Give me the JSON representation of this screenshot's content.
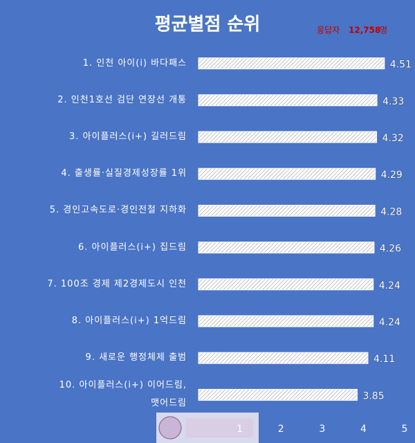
{
  "chart_data": {
    "type": "bar",
    "orientation": "horizontal",
    "title": "평균별점 순위",
    "respondents_prefix": "응답자",
    "respondents": "12,758",
    "respondents_suffix": "명",
    "categories": [
      "1. 인천 아이(i) 바다패스",
      "2. 인천1호선 검단 연장선 개통",
      "3. 아이플러스(i+) 길러드림",
      "4. 출생률·실질경제성장률 1위",
      "5. 경인고속도로·경인전철 지하화",
      "6. 아이플러스(i+) 집드림",
      "7. 100조 경제 제2경제도시 인천",
      "8. 아이플러스(i+) 1억드림",
      "9. 새로운 행정체제 출범",
      "10. 아이플러스(i+) 이어드림,\n맷어드림"
    ],
    "values": [
      4.51,
      4.33,
      4.32,
      4.29,
      4.28,
      4.26,
      4.24,
      4.24,
      4.11,
      3.85
    ],
    "color": "#ffffff",
    "xlim": [
      0,
      5
    ],
    "xticks": [
      1,
      2,
      3,
      4,
      5
    ]
  }
}
